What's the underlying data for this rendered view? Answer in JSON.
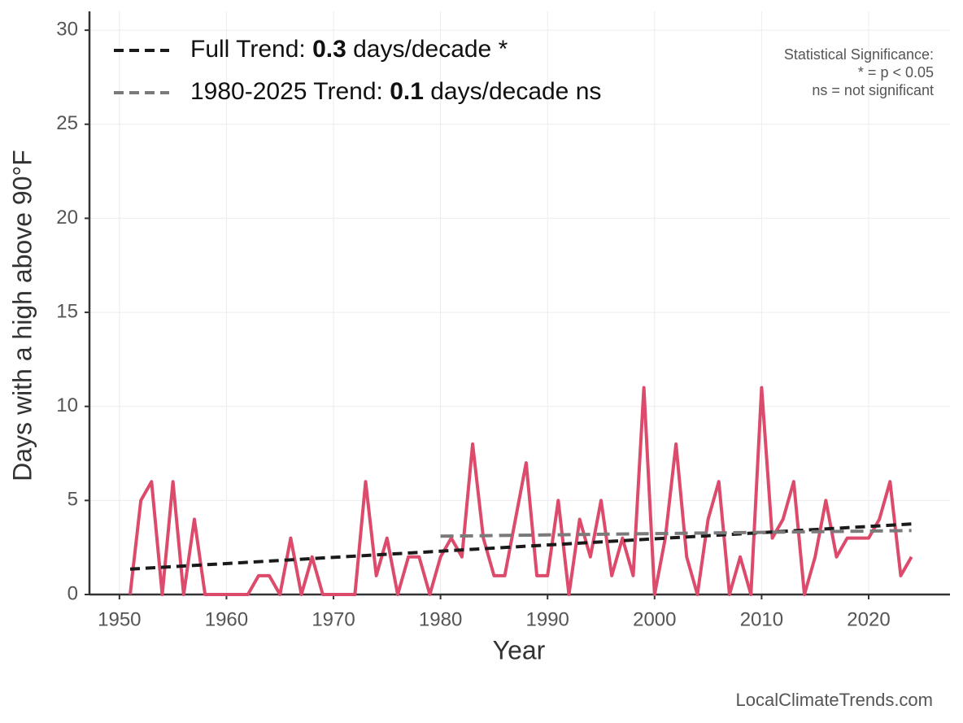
{
  "chart_data": {
    "type": "line",
    "y_label": "Days with a high above 90°F",
    "x_label": "Year",
    "xlim": [
      1947.2,
      2027.6
    ],
    "xticks": [
      1950,
      1960,
      1970,
      1980,
      1990,
      2000,
      2010,
      2020
    ],
    "ylim": [
      0,
      31
    ],
    "yticks": [
      0,
      5,
      10,
      15,
      20,
      25,
      30
    ],
    "grid": true,
    "color": "#dc4a6c",
    "x": [
      1951,
      1952,
      1953,
      1954,
      1955,
      1956,
      1957,
      1958,
      1959,
      1960,
      1961,
      1962,
      1963,
      1964,
      1965,
      1966,
      1967,
      1968,
      1969,
      1970,
      1971,
      1972,
      1973,
      1974,
      1975,
      1976,
      1977,
      1978,
      1979,
      1980,
      1981,
      1982,
      1983,
      1984,
      1985,
      1986,
      1987,
      1988,
      1989,
      1990,
      1991,
      1992,
      1993,
      1994,
      1995,
      1996,
      1997,
      1998,
      1999,
      2000,
      2001,
      2002,
      2003,
      2004,
      2005,
      2006,
      2007,
      2008,
      2009,
      2010,
      2011,
      2012,
      2013,
      2014,
      2015,
      2016,
      2017,
      2018,
      2019,
      2020,
      2021,
      2022,
      2023,
      2024
    ],
    "values": [
      0,
      5,
      6,
      0,
      6,
      0,
      4,
      0,
      0,
      0,
      0,
      0,
      1,
      1,
      0,
      3,
      0,
      2,
      0,
      0,
      0,
      0,
      6,
      1,
      3,
      0,
      2,
      2,
      0,
      2,
      3,
      2,
      8,
      3,
      1,
      1,
      4,
      7,
      1,
      1,
      5,
      0,
      4,
      2,
      5,
      1,
      3,
      1,
      11,
      0,
      3,
      8,
      2,
      0,
      4,
      6,
      0,
      2,
      0,
      11,
      3,
      4,
      6,
      0,
      2,
      5,
      2,
      3,
      3,
      3,
      4,
      6,
      1,
      2
    ],
    "trend_lines": [
      {
        "label_parts": [
          "Full Trend: ",
          "0.3",
          " days/decade *"
        ],
        "color": "#1a1a1a",
        "x": [
          1951,
          2024
        ],
        "values": [
          1.35,
          3.75
        ]
      },
      {
        "label_parts": [
          "1980-2025 Trend: ",
          "0.1",
          " days/decade ns"
        ],
        "color": "#7a7a7a",
        "x": [
          1980,
          2024
        ],
        "values": [
          3.1,
          3.4
        ]
      }
    ],
    "annotation": [
      "Statistical Significance:",
      "* = p < 0.05",
      "ns = not significant"
    ],
    "source": "LocalClimateTrends.com"
  }
}
